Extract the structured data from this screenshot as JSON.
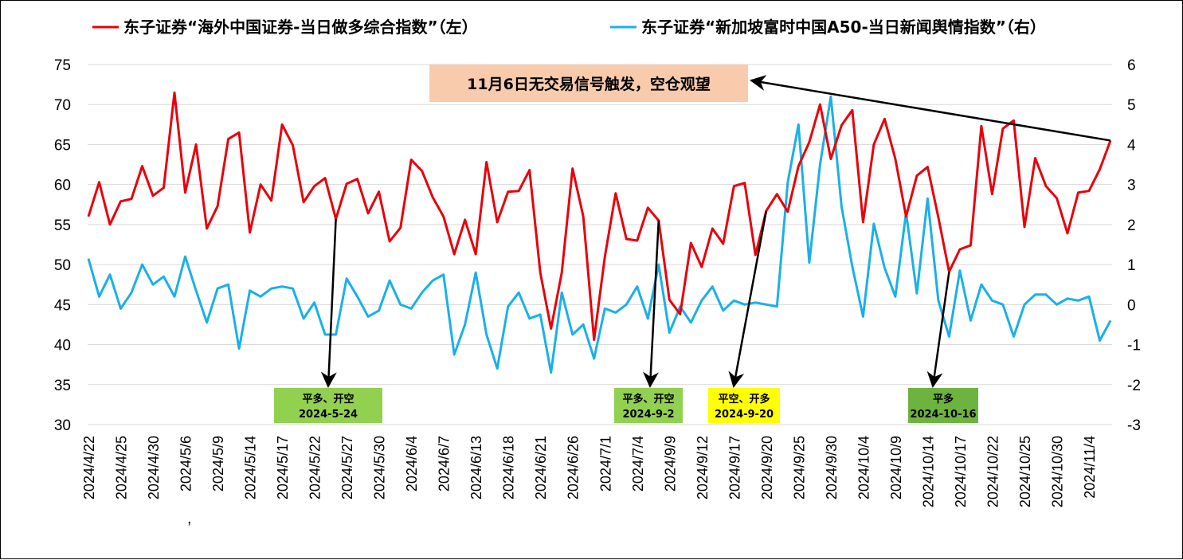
{
  "chart_data": {
    "type": "line",
    "legend": {
      "placement": "top"
    },
    "series": [
      {
        "name": "东子证券“海外中国证券-当日做多综合指数”（左）",
        "axis": "left",
        "color": "#e8000b",
        "values": [
          56,
          60.3,
          55,
          57.9,
          58.2,
          62.3,
          58.6,
          59.6,
          71.5,
          59,
          65,
          54.5,
          57.3,
          65.7,
          66.5,
          54,
          60,
          58,
          67.5,
          64.9,
          57.8,
          59.8,
          60.8,
          55.7,
          60.1,
          60.7,
          56.4,
          59.1,
          52.9,
          54.6,
          63.1,
          61.7,
          58.4,
          56,
          51.3,
          55.6,
          51.3,
          62.8,
          55.3,
          59.1,
          59.2,
          61.8,
          49,
          42,
          49,
          62,
          56,
          40.6,
          51,
          58.9,
          53.2,
          53,
          57.1,
          55.5,
          45.6,
          43.8,
          52.7,
          49.7,
          54.5,
          52.6,
          59.8,
          60.2,
          51.2,
          56.7,
          58.8,
          56.6,
          62.3,
          65.3,
          70,
          63.2,
          67.4,
          69.3,
          55.3,
          65,
          68.2,
          63.2,
          56,
          61.1,
          62.2,
          55.9,
          49.1,
          51.9,
          52.4,
          67.3,
          58.8,
          67,
          68,
          54.7,
          63.3,
          59.8,
          58.3,
          53.9,
          59,
          59.2,
          61.9,
          65.5
        ]
      },
      {
        "name": "东子证券“新加坡富时中国A50-当日新闻舆情指数”（右）",
        "axis": "right",
        "color": "#1ab0e8",
        "values": [
          1.15,
          0.2,
          0.75,
          -0.1,
          0.3,
          1,
          0.5,
          0.7,
          0.2,
          1.2,
          0.35,
          -0.45,
          0.4,
          0.5,
          -1.1,
          0.35,
          0.2,
          0.4,
          0.45,
          0.4,
          -0.35,
          0.05,
          -0.75,
          -0.75,
          0.65,
          0.2,
          -0.3,
          -0.15,
          0.6,
          0,
          -0.1,
          0.3,
          0.6,
          0.75,
          -1.25,
          -0.5,
          0.8,
          -0.75,
          -1.6,
          -0.05,
          0.3,
          -0.35,
          -0.25,
          -1.7,
          0.3,
          -0.75,
          -0.5,
          -1.35,
          -0.1,
          -0.2,
          0,
          0.45,
          -0.35,
          1,
          -0.7,
          -0.05,
          -0.45,
          0.1,
          0.45,
          -0.15,
          0.1,
          0,
          0.05,
          0,
          -0.05,
          3.05,
          4.5,
          1.05,
          3.5,
          5.2,
          2.45,
          0.95,
          -0.3,
          2.02,
          0.92,
          0.2,
          2.3,
          0.28,
          2.65,
          0.1,
          -0.8,
          0.85,
          -0.4,
          0.5,
          0.1,
          0,
          -0.8,
          0,
          0.25,
          0.25,
          0,
          0.15,
          0.1,
          0.2,
          -0.9,
          -0.4
        ]
      }
    ],
    "x_ticks": [
      "2024/4/22",
      "2024/4/25",
      "2024/4/30",
      "2024/5/6",
      "2024/5/9",
      "2024/5/14",
      "2024/5/17",
      "2024/5/22",
      "2024/5/27",
      "2024/5/30",
      "2024/6/4",
      "2024/6/7",
      "2024/6/13",
      "2024/6/18",
      "2024/6/21",
      "2024/6/26",
      "2024/7/1",
      "2024/7/4",
      "2024/9/9",
      "2024/9/12",
      "2024/9/17",
      "2024/9/20",
      "2024/9/25",
      "2024/9/30",
      "2024/10/4",
      "2024/10/9",
      "2024/10/14",
      "2024/10/17",
      "2024/10/22",
      "2024/10/25",
      "2024/10/30",
      "2024/11/4"
    ],
    "x_tick_every": 3,
    "left_axis": {
      "ylim": [
        30,
        75
      ],
      "ticks": [
        "30",
        "35",
        "40",
        "45",
        "50",
        "55",
        "60",
        "65",
        "70",
        "75"
      ]
    },
    "right_axis": {
      "ylim": [
        -3,
        6
      ],
      "ticks": [
        "-3",
        "-2",
        "-1",
        "0",
        "1",
        "2",
        "3",
        "4",
        "5",
        "6"
      ]
    },
    "stray_mark": ",",
    "annotations": [
      {
        "line1": "平多、开空",
        "line2": "2024-5-24",
        "color": "#92d050",
        "point_index": 23
      },
      {
        "line1": "平多、开空",
        "line2": "2024-9-2",
        "color": "#92d050",
        "point_index": 53
      },
      {
        "line1": "平空、开多",
        "line2": "2024-9-20",
        "color": "#ffff00",
        "point_index": 63
      },
      {
        "line1": "平多",
        "line2": "2024-10-16",
        "color": "#6db33f",
        "point_index": 80
      }
    ],
    "note": {
      "text": "11月6日无交易信号触发，空仓观望",
      "color": "#f8cbad",
      "point_index": 95
    }
  }
}
